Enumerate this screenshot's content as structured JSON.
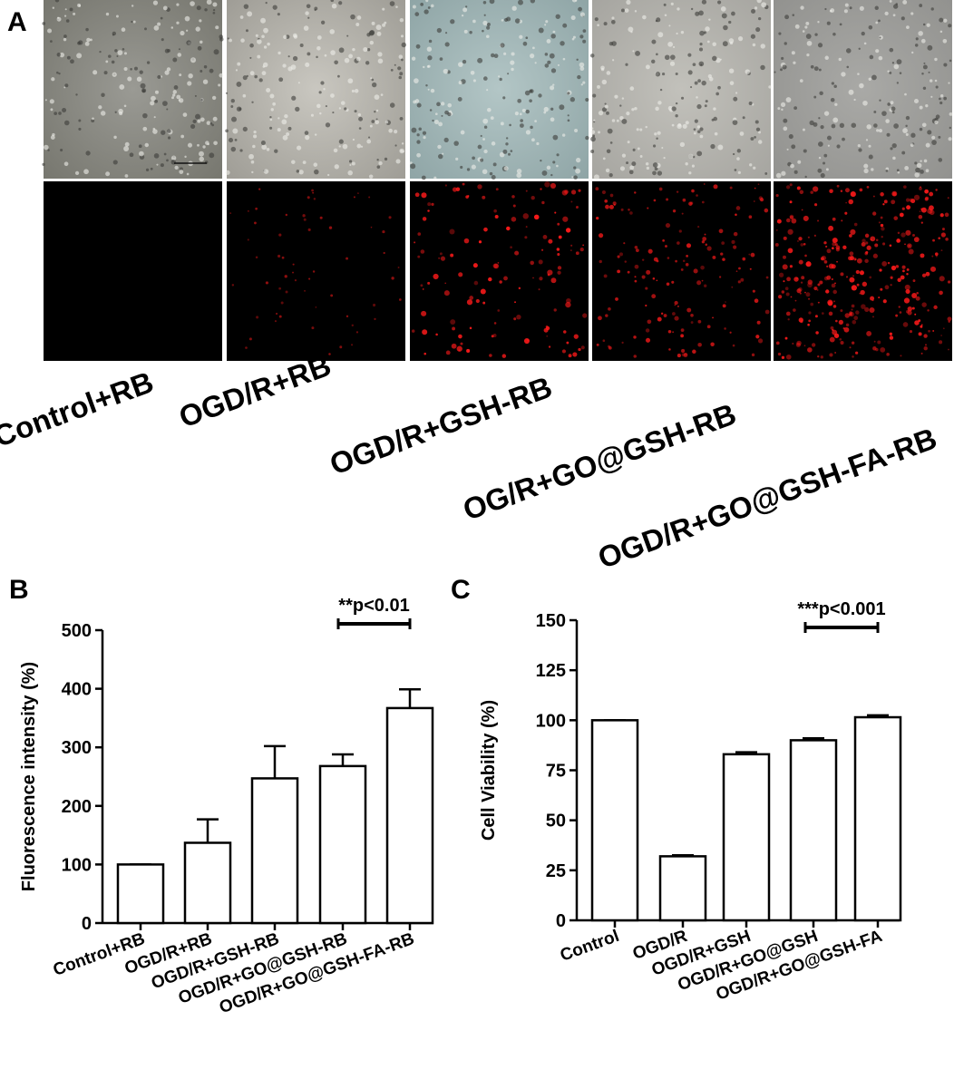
{
  "panel_a": {
    "label": "A",
    "conditions": [
      "Control+RB",
      "OGD/R+RB",
      "OGD/R+GSH-RB",
      "OG/R+GO@GSH-RB",
      "OGD/R+GO@GSH-FA-RB"
    ]
  },
  "chart_data": [
    {
      "type": "bar",
      "label": "B",
      "y_label": "Fluorescence intensity (%)",
      "categories": [
        "Control+RB",
        "OGD/R+RB",
        "OGD/R+GSH-RB",
        "OGD/R+GO@GSH-RB",
        "OGD/R+GO@GSH-FA-RB"
      ],
      "values": [
        100,
        137,
        247,
        268,
        367
      ],
      "errors": [
        0,
        40,
        55,
        20,
        32
      ],
      "ylim": [
        0,
        500
      ],
      "yticks": [
        0,
        100,
        200,
        300,
        400,
        500
      ],
      "color": "#ffffff",
      "annotation": "**p<0.01"
    },
    {
      "type": "bar",
      "label": "C",
      "y_label": "Cell Viability (%)",
      "categories": [
        "Control",
        "OGD/R",
        "OGD/R+GSH",
        "OGD/R+GO@GSH",
        "OGD/R+GO@GSH-FA"
      ],
      "values": [
        100,
        32,
        83,
        90,
        101.5
      ],
      "errors": [
        0,
        0.5,
        1,
        1,
        1
      ],
      "ylim": [
        0,
        150
      ],
      "yticks": [
        0,
        25,
        50,
        75,
        100,
        125,
        150
      ],
      "color": "#ffffff",
      "annotation": "***p<0.001"
    }
  ]
}
